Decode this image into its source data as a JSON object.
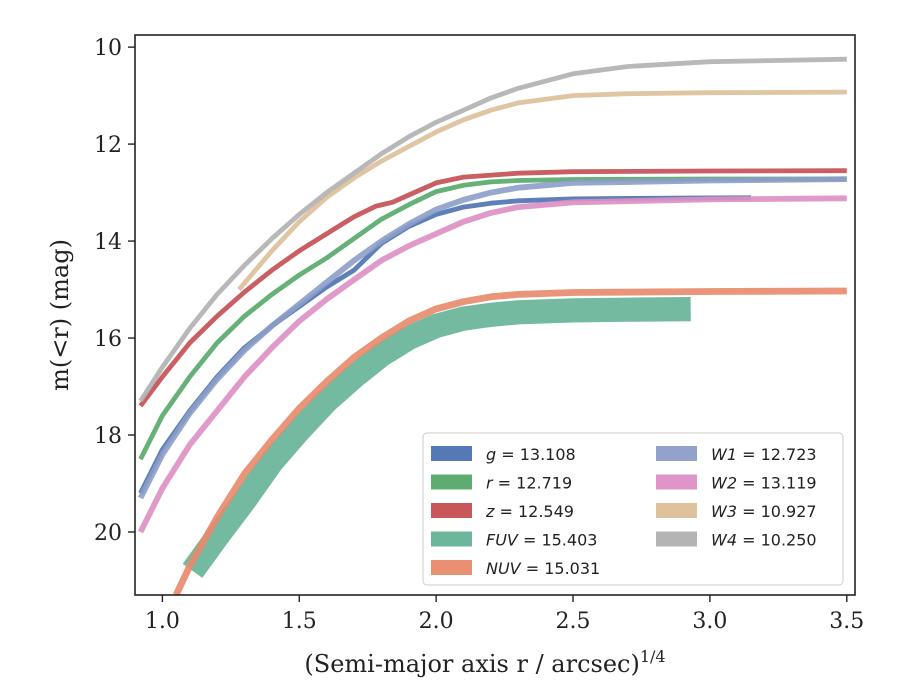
{
  "chart_data": {
    "type": "line",
    "xlabel": "(Semi-major axis r / arcsec)",
    "xlabel_superscript": "1/4",
    "ylabel": "m(<r) (mag)",
    "xlim": [
      0.9,
      3.53
    ],
    "ylim": [
      21.3,
      9.75
    ],
    "y_inverted": true,
    "grid": false,
    "legend_position": "lower-right",
    "x_ticks": [
      "1.0",
      "1.5",
      "2.0",
      "2.5",
      "3.0",
      "3.5"
    ],
    "y_ticks": [
      "10",
      "12",
      "14",
      "16",
      "18",
      "20"
    ],
    "series": [
      {
        "name": "g = 13.108",
        "sym": "g",
        "val": "13.108",
        "color": "#4c72b0",
        "band_width": 0.1,
        "x": [
          0.92,
          1.0,
          1.1,
          1.2,
          1.3,
          1.4,
          1.5,
          1.6,
          1.7,
          1.8,
          1.9,
          2.0,
          2.1,
          2.2,
          2.3,
          2.5,
          2.7,
          3.0,
          3.15
        ],
        "y": [
          19.2,
          18.3,
          17.5,
          16.8,
          16.2,
          15.75,
          15.35,
          14.95,
          14.6,
          14.05,
          13.7,
          13.45,
          13.3,
          13.22,
          13.17,
          13.13,
          13.12,
          13.11,
          13.108
        ]
      },
      {
        "name": "r = 12.719",
        "sym": "r",
        "val": "12.719",
        "color": "#55a868",
        "band_width": 0.1,
        "x": [
          0.92,
          1.0,
          1.1,
          1.2,
          1.3,
          1.4,
          1.5,
          1.6,
          1.7,
          1.8,
          1.9,
          2.0,
          2.1,
          2.2,
          2.3,
          2.5,
          3.0,
          3.5
        ],
        "y": [
          18.5,
          17.6,
          16.8,
          16.1,
          15.55,
          15.1,
          14.7,
          14.35,
          13.95,
          13.55,
          13.25,
          12.98,
          12.85,
          12.78,
          12.75,
          12.73,
          12.72,
          12.719
        ]
      },
      {
        "name": "z = 12.549",
        "sym": "z",
        "val": "12.549",
        "color": "#c44e52",
        "band_width": 0.1,
        "x": [
          0.92,
          1.0,
          1.1,
          1.2,
          1.3,
          1.4,
          1.5,
          1.6,
          1.7,
          1.78,
          1.84,
          1.9,
          2.0,
          2.1,
          2.3,
          2.5,
          3.0,
          3.5
        ],
        "y": [
          17.4,
          16.8,
          16.1,
          15.55,
          15.05,
          14.6,
          14.2,
          13.85,
          13.5,
          13.28,
          13.2,
          13.05,
          12.8,
          12.68,
          12.6,
          12.57,
          12.555,
          12.549
        ]
      },
      {
        "name": "FUV = 15.403",
        "sym": "FUV",
        "val": "15.403",
        "color": "#64b296",
        "band_width": 0.5,
        "x": [
          1.11,
          1.2,
          1.3,
          1.4,
          1.5,
          1.6,
          1.7,
          1.8,
          1.9,
          2.0,
          2.1,
          2.2,
          2.3,
          2.5,
          2.7,
          2.93
        ],
        "y": [
          20.8,
          20.1,
          19.35,
          18.55,
          17.9,
          17.3,
          16.8,
          16.35,
          16.0,
          15.75,
          15.6,
          15.52,
          15.47,
          15.43,
          15.415,
          15.403
        ]
      },
      {
        "name": "NUV = 15.031",
        "sym": "NUV",
        "val": "15.031",
        "color": "#e8896a",
        "band_width": 0.14,
        "x": [
          1.05,
          1.1,
          1.2,
          1.3,
          1.4,
          1.5,
          1.6,
          1.7,
          1.8,
          1.9,
          2.0,
          2.1,
          2.2,
          2.3,
          2.5,
          3.0,
          3.5
        ],
        "y": [
          21.3,
          20.7,
          19.7,
          18.8,
          18.1,
          17.45,
          16.9,
          16.4,
          16.0,
          15.65,
          15.4,
          15.25,
          15.15,
          15.1,
          15.06,
          15.04,
          15.031
        ]
      },
      {
        "name": "W1 = 12.723",
        "sym": "W1",
        "val": "12.723",
        "color": "#8c9dc8",
        "band_width": 0.12,
        "x": [
          0.92,
          1.0,
          1.1,
          1.2,
          1.3,
          1.4,
          1.5,
          1.6,
          1.7,
          1.8,
          1.9,
          2.0,
          2.1,
          2.2,
          2.3,
          2.5,
          3.0,
          3.5
        ],
        "y": [
          19.3,
          18.4,
          17.55,
          16.85,
          16.25,
          15.75,
          15.3,
          14.85,
          14.4,
          14.0,
          13.65,
          13.35,
          13.15,
          13.0,
          12.9,
          12.8,
          12.75,
          12.723
        ]
      },
      {
        "name": "W2 = 13.119",
        "sym": "W2",
        "val": "13.119",
        "color": "#dd8fc4",
        "band_width": 0.12,
        "x": [
          0.92,
          1.0,
          1.1,
          1.2,
          1.3,
          1.4,
          1.5,
          1.6,
          1.7,
          1.8,
          1.9,
          2.0,
          2.1,
          2.2,
          2.3,
          2.5,
          3.0,
          3.5
        ],
        "y": [
          20.0,
          19.1,
          18.2,
          17.5,
          16.8,
          16.2,
          15.65,
          15.2,
          14.8,
          14.4,
          14.1,
          13.85,
          13.6,
          13.42,
          13.3,
          13.2,
          13.14,
          13.119
        ]
      },
      {
        "name": "W3 = 10.927",
        "sym": "W3",
        "val": "10.927",
        "color": "#dcbf98",
        "band_width": 0.1,
        "x": [
          1.28,
          1.4,
          1.5,
          1.6,
          1.7,
          1.8,
          1.9,
          2.0,
          2.1,
          2.2,
          2.3,
          2.5,
          2.7,
          3.0,
          3.5
        ],
        "y": [
          15.0,
          14.2,
          13.6,
          13.1,
          12.7,
          12.35,
          12.05,
          11.75,
          11.5,
          11.3,
          11.15,
          11.0,
          10.96,
          10.94,
          10.927
        ]
      },
      {
        "name": "W4 = 10.250",
        "sym": "W4",
        "val": "10.250",
        "color": "#b0b0b0",
        "band_width": 0.1,
        "x": [
          0.92,
          1.0,
          1.1,
          1.2,
          1.3,
          1.4,
          1.5,
          1.6,
          1.7,
          1.8,
          1.9,
          2.0,
          2.1,
          2.2,
          2.3,
          2.5,
          2.7,
          3.0,
          3.5
        ],
        "y": [
          17.3,
          16.6,
          15.8,
          15.1,
          14.5,
          13.95,
          13.45,
          13.0,
          12.6,
          12.2,
          11.85,
          11.55,
          11.3,
          11.05,
          10.85,
          10.55,
          10.4,
          10.3,
          10.25
        ]
      }
    ]
  }
}
